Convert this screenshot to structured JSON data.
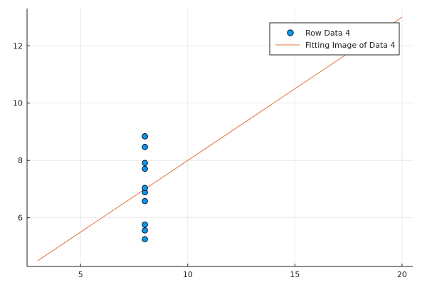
{
  "chart_data": {
    "type": "scatter",
    "title": "",
    "xlabel": "",
    "ylabel": "",
    "xlim": [
      2.5,
      20.5
    ],
    "ylim": [
      4.3,
      13.3
    ],
    "xticks": [
      5,
      10,
      15,
      20
    ],
    "yticks": [
      6,
      8,
      10,
      12
    ],
    "xtick_labels": [
      "5",
      "10",
      "15",
      "20"
    ],
    "ytick_labels": [
      "6",
      "8",
      "10",
      "12"
    ],
    "grid": true,
    "legend_position": "top-right",
    "series": [
      {
        "name": "Row Data 4",
        "kind": "scatter",
        "color": "#009af9",
        "x": [
          8,
          8,
          8,
          8,
          8,
          8,
          8,
          8,
          8,
          8,
          8
        ],
        "y": [
          5.25,
          5.56,
          5.76,
          6.58,
          6.89,
          7.04,
          7.71,
          7.91,
          8.47,
          8.84,
          8.84
        ]
      },
      {
        "name": "Fitting Image of Data 4",
        "kind": "line",
        "color": "#e26f46",
        "x": [
          3,
          20
        ],
        "y": [
          4.5,
          13.0
        ]
      }
    ]
  }
}
